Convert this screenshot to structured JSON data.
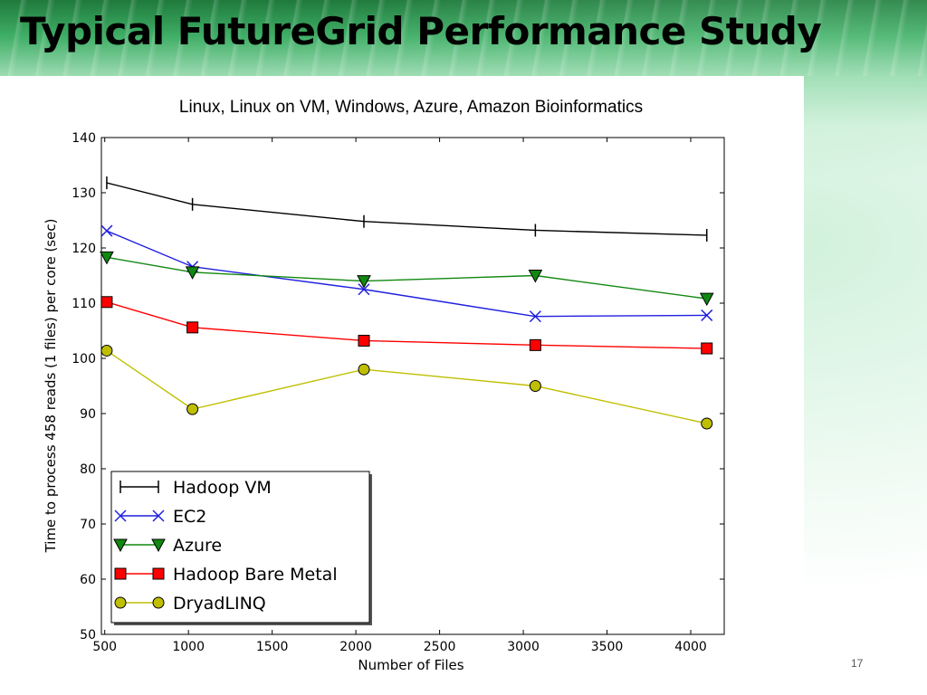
{
  "slide": {
    "title": "Typical FutureGrid Performance Study",
    "page_number": "17"
  },
  "chart_data": {
    "type": "line",
    "title": "Linux, Linux on VM, Windows, Azure, Amazon Bioinformatics",
    "xlabel": "Number of Files",
    "ylabel": "Time to process 458 reads (1 files) per core (sec)",
    "xlim": [
      480,
      4200
    ],
    "ylim": [
      50,
      140
    ],
    "xticks": [
      500,
      1000,
      1500,
      2000,
      2500,
      3000,
      3500,
      4000
    ],
    "yticks": [
      50,
      60,
      70,
      80,
      90,
      100,
      110,
      120,
      130,
      140
    ],
    "grid": false,
    "legend_position": "lower-left",
    "series": [
      {
        "name": "Hadoop VM",
        "color": "#000000",
        "marker": "vline",
        "x": [
          512,
          1024,
          2048,
          3072,
          4096
        ],
        "y": [
          131.8,
          127.9,
          124.8,
          123.2,
          122.3
        ]
      },
      {
        "name": "EC2",
        "color": "#1f1fe0",
        "marker": "x",
        "x": [
          512,
          1024,
          2048,
          3072,
          4096
        ],
        "y": [
          123.1,
          116.6,
          112.5,
          107.6,
          107.8
        ]
      },
      {
        "name": "Azure",
        "color": "#118811",
        "marker": "triangle-down",
        "x": [
          512,
          1024,
          2048,
          3072,
          4096
        ],
        "y": [
          118.3,
          115.6,
          114.0,
          115.0,
          110.8
        ]
      },
      {
        "name": "Hadoop Bare Metal",
        "color": "#ff0000",
        "marker": "square",
        "x": [
          512,
          1024,
          2048,
          3072,
          4096
        ],
        "y": [
          110.2,
          105.6,
          103.2,
          102.4,
          101.8
        ]
      },
      {
        "name": "DryadLINQ",
        "color": "#bfbf00",
        "marker": "circle",
        "x": [
          512,
          1024,
          2048,
          3072,
          4096
        ],
        "y": [
          101.4,
          90.8,
          98.0,
          95.0,
          88.2
        ]
      }
    ]
  }
}
